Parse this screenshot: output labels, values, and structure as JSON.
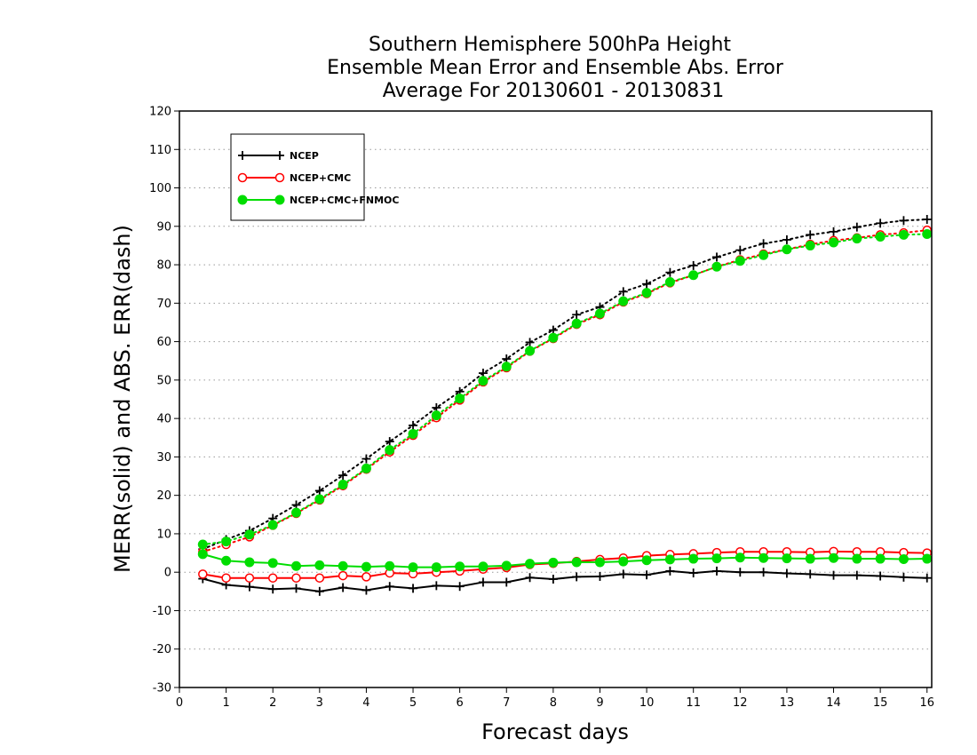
{
  "chart_data": {
    "type": "line",
    "title": [
      "Southern Hemisphere 500hPa Height",
      "Ensemble Mean Error and Ensemble Abs. Error",
      "Average For 20130601 - 20130831"
    ],
    "xlabel": "Forecast days",
    "ylabel": "MERR(solid) and ABS. ERR(dash)",
    "xlim": [
      0,
      16.1
    ],
    "ylim": [
      -30,
      120
    ],
    "x_ticks": [
      0,
      1,
      2,
      3,
      4,
      5,
      6,
      7,
      8,
      9,
      10,
      11,
      12,
      13,
      14,
      15,
      16
    ],
    "y_ticks": [
      -30,
      -20,
      -10,
      0,
      10,
      20,
      30,
      40,
      50,
      60,
      70,
      80,
      90,
      100,
      110,
      120
    ],
    "grid": true,
    "legend_position": "top-left",
    "x": [
      0.5,
      1,
      1.5,
      2,
      2.5,
      3,
      3.5,
      4,
      4.5,
      5,
      5.5,
      6,
      6.5,
      7,
      7.5,
      8,
      8.5,
      9,
      9.5,
      10,
      10.5,
      11,
      11.5,
      12,
      12.5,
      13,
      13.5,
      14,
      14.5,
      15,
      15.5,
      16
    ],
    "series": [
      {
        "name": "NCEP",
        "color": "#000000",
        "marker": "plus",
        "merr": [
          -1.7,
          -3.3,
          -3.8,
          -4.4,
          -4.2,
          -5.0,
          -4.0,
          -4.7,
          -3.7,
          -4.2,
          -3.5,
          -3.7,
          -2.6,
          -2.6,
          -1.4,
          -1.8,
          -1.2,
          -1.1,
          -0.5,
          -0.7,
          0.3,
          -0.2,
          0.3,
          0.0,
          0.0,
          -0.3,
          -0.5,
          -0.8,
          -0.8,
          -1.0,
          -1.3,
          -1.5
        ],
        "abs_err": [
          6.0,
          8.5,
          10.8,
          14.0,
          17.5,
          21.2,
          25.2,
          29.5,
          34.0,
          38.2,
          42.8,
          47.0,
          51.8,
          55.5,
          59.8,
          63.0,
          67.0,
          69.0,
          73.0,
          75.0,
          78.0,
          79.8,
          82.0,
          83.8,
          85.5,
          86.5,
          87.8,
          88.6,
          89.8,
          90.8,
          91.5,
          91.8
        ]
      },
      {
        "name": "NCEP+CMC",
        "color": "#ff0000",
        "marker": "open-circle",
        "merr": [
          -0.5,
          -1.5,
          -1.5,
          -1.5,
          -1.5,
          -1.5,
          -0.9,
          -1.2,
          -0.2,
          -0.4,
          0.0,
          0.3,
          0.8,
          1.2,
          2.0,
          2.3,
          2.8,
          3.3,
          3.7,
          4.3,
          4.6,
          4.8,
          5.1,
          5.3,
          5.3,
          5.3,
          5.2,
          5.4,
          5.3,
          5.3,
          5.1,
          5.0
        ],
        "abs_err": [
          5.3,
          7.2,
          9.2,
          12.2,
          15.3,
          18.8,
          22.5,
          26.8,
          31.3,
          35.6,
          40.2,
          44.8,
          49.5,
          53.2,
          57.5,
          60.8,
          64.5,
          67.0,
          70.3,
          72.5,
          75.3,
          77.3,
          79.5,
          81.3,
          82.8,
          84.0,
          85.3,
          86.3,
          87.0,
          87.8,
          88.3,
          89.0
        ]
      },
      {
        "name": "NCEP+CMC+FNMOC",
        "color": "#00dd00",
        "marker": "filled-circle",
        "merr": [
          4.7,
          3.0,
          2.6,
          2.4,
          1.6,
          1.8,
          1.6,
          1.4,
          1.6,
          1.3,
          1.3,
          1.5,
          1.5,
          1.7,
          2.2,
          2.5,
          2.6,
          2.6,
          2.8,
          3.1,
          3.3,
          3.5,
          3.6,
          3.8,
          3.7,
          3.6,
          3.5,
          3.7,
          3.5,
          3.5,
          3.4,
          3.5
        ],
        "abs_err": [
          7.2,
          8.0,
          9.8,
          12.3,
          15.5,
          19.0,
          22.8,
          27.0,
          31.8,
          36.0,
          40.8,
          45.2,
          49.8,
          53.5,
          57.6,
          61.0,
          64.7,
          67.3,
          70.5,
          72.7,
          75.5,
          77.3,
          79.5,
          81.0,
          82.5,
          84.0,
          85.0,
          85.8,
          86.8,
          87.3,
          87.8,
          88.0
        ]
      }
    ]
  }
}
